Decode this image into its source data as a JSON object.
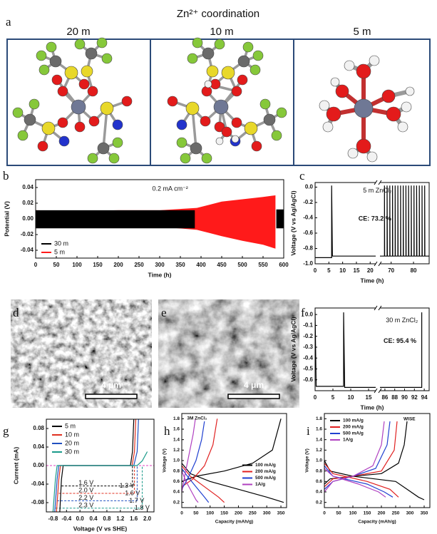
{
  "panel_labels": [
    "a",
    "b",
    "c",
    "d",
    "e",
    "f",
    "g",
    "h",
    "i"
  ],
  "coordination": {
    "title": "Zn²⁺ coordination",
    "columns": [
      "20 m",
      "10 m",
      "5 m"
    ]
  },
  "sem_images": [
    {
      "scale_bar": "4 μm"
    },
    {
      "scale_bar": "4 μm"
    }
  ],
  "chart_data": [
    {
      "type": "area",
      "ylabel": "Potential (V)",
      "xlabel": "Time (h)",
      "xlim": [
        0,
        600
      ],
      "ylim": [
        -0.05,
        0.05
      ],
      "xticks": [
        0,
        50,
        100,
        150,
        200,
        250,
        300,
        350,
        400,
        450,
        500,
        550,
        600
      ],
      "yticks": [
        0.04,
        0.02,
        {
          "value": 0,
          "label": "0.00"
        },
        -0.02,
        -0.04
      ],
      "legend": "lower left",
      "annotations": [
        "0.2 mA cm⁻²"
      ],
      "series": [
        {
          "name": "30 m",
          "color": "#000000",
          "x": [
            0,
            385,
            480,
            582,
            600
          ],
          "values": [
            0.011,
            0.011,
            null,
            0.012,
            0.012
          ],
          "values_low": [
            -0.012,
            -0.012,
            null,
            -0.012,
            -0.012
          ]
        },
        {
          "name": "5 m",
          "color": "#ff1a1a",
          "x": [
            0,
            100,
            200,
            300,
            390,
            420,
            450,
            500,
            550,
            580
          ],
          "values": [
            0.011,
            0.01,
            0.011,
            0.011,
            0.014,
            0.018,
            0.022,
            0.025,
            0.028,
            0.03
          ],
          "values_low": [
            -0.01,
            -0.01,
            -0.01,
            -0.01,
            -0.014,
            -0.018,
            -0.022,
            -0.028,
            -0.033,
            -0.038
          ]
        }
      ]
    },
    {
      "type": "line",
      "ylabel": "Voltage (V vs Ag/AgCl)",
      "xlabel": "Time (h)",
      "xlim": [
        0,
        87
      ],
      "xbreak": [
        22,
        65
      ],
      "ylim": [
        -1,
        0.06
      ],
      "xticks": [
        0,
        5,
        10,
        15,
        20,
        70,
        80
      ],
      "yticks": [
        {
          "value": 0,
          "label": "0.0"
        },
        -0.2,
        -0.4,
        -0.6,
        -0.8,
        {
          "value": -1,
          "label": "-1.0"
        }
      ],
      "annotations": [
        "5 m ZnCl₂",
        "CE: 73.2 %"
      ],
      "series": [
        {
          "color": "#000000",
          "x": [
            0,
            1,
            6,
            6,
            6.3,
            10,
            22,
            40,
            65,
            67,
            67,
            67.1,
            68.2,
            68.2,
            68.3,
            69.4,
            69.4,
            69.5,
            70.6,
            70.6,
            70.7,
            71.8,
            71.8,
            71.9,
            73,
            73,
            73.1,
            74.2,
            74.2,
            74.3,
            75.4,
            75.4,
            75.5,
            76.6,
            76.6,
            76.7,
            77.8,
            77.8,
            77.9,
            79,
            79,
            79.1,
            80.2,
            80.2,
            80.3,
            81.4,
            81.4,
            81.5,
            82.6,
            82.6,
            82.7,
            83.8,
            83.8,
            83.9,
            85,
            85,
            85.1,
            87
          ],
          "values": [
            -0.92,
            -0.92,
            -0.92,
            0.02,
            -0.9,
            -0.9,
            -0.9,
            null,
            -0.9,
            -0.9,
            0.02,
            -0.9,
            -0.9,
            0.02,
            -0.9,
            -0.9,
            0.02,
            -0.9,
            -0.9,
            0.02,
            -0.9,
            -0.9,
            0.02,
            -0.9,
            -0.9,
            0.02,
            -0.9,
            -0.9,
            0.02,
            -0.9,
            -0.9,
            0.02,
            -0.9,
            -0.9,
            0.02,
            -0.9,
            -0.9,
            0.02,
            -0.9,
            -0.9,
            0.02,
            -0.9,
            -0.9,
            0.02,
            -0.9,
            -0.9,
            0.02,
            -0.9,
            -0.9,
            0.02,
            -0.9,
            -0.9,
            0.02,
            -0.9,
            -0.9,
            0.02,
            -0.9,
            -0.9
          ]
        }
      ]
    },
    {
      "type": "line",
      "ylabel": "Voltage (V vs Ag/AgCl)",
      "xlabel": "Time (h)",
      "xlim": [
        0,
        95
      ],
      "xbreak": [
        17,
        85
      ],
      "ylim": [
        -0.7,
        0.06
      ],
      "xticks": [
        0,
        5,
        10,
        15,
        86,
        88,
        90,
        92,
        94
      ],
      "yticks": [
        {
          "value": 0,
          "label": "0.0"
        },
        -0.1,
        -0.2,
        -0.3,
        -0.4,
        -0.5,
        -0.6
      ],
      "annotations": [
        "30 m ZnCl₂",
        "CE: 95.4 %"
      ],
      "series": [
        {
          "color": "#000000",
          "x": [
            0,
            0.3,
            8,
            8,
            8.3,
            17,
            50,
            85,
            93.5,
            93.5
          ],
          "values": [
            0.02,
            -0.66,
            -0.66,
            0.02,
            -0.67,
            -0.67,
            null,
            -0.67,
            -0.67,
            0.02
          ]
        }
      ]
    },
    {
      "type": "line",
      "ylabel": "Current (mA)",
      "xlabel": "Voltage (V vs SHE)",
      "xlim": [
        -1,
        2.2
      ],
      "ylim": [
        -0.1,
        0.1
      ],
      "xticks": [
        -0.8,
        -0.4,
        {
          "value": 0,
          "label": "0.0"
        },
        0.4,
        0.8,
        1.2,
        1.6,
        {
          "value": 2,
          "label": "2.0"
        }
      ],
      "yticks": [
        0.08,
        0.04,
        {
          "value": 0,
          "label": "0.00"
        },
        -0.04,
        -0.08
      ],
      "legend": "upper left",
      "annotations": [
        "1.6 V",
        "2.0 V",
        "2.2 V",
        "2.3 V",
        "1.3 V",
        "1.6 V",
        "1.7 V",
        "1.8 V"
      ],
      "series": [
        {
          "name": "5 m",
          "color": "#000000",
          "x": [
            -0.6,
            -0.55,
            -0.5,
            1.5,
            1.56,
            1.6
          ],
          "values": [
            -0.1,
            -0.03,
            0,
            0,
            0.03,
            0.1
          ]
        },
        {
          "name": "10 m",
          "color": "#e03020",
          "x": [
            -0.7,
            -0.63,
            -0.58,
            1.55,
            1.62,
            1.66
          ],
          "values": [
            -0.1,
            -0.03,
            0,
            0,
            0.03,
            0.1
          ]
        },
        {
          "name": "20 m",
          "color": "#2050c0",
          "x": [
            -0.75,
            -0.68,
            -0.63,
            1.6,
            1.7,
            1.74
          ],
          "values": [
            -0.1,
            -0.03,
            0,
            0,
            0.03,
            0.1
          ]
        },
        {
          "name": "30 m",
          "color": "#1a9a8a",
          "x": [
            -0.8,
            -0.73,
            -0.68,
            1.7,
            1.85,
            2
          ],
          "values": [
            -0.1,
            -0.03,
            0,
            0,
            0.01,
            0.03
          ]
        }
      ]
    },
    {
      "type": "line",
      "ylabel": "Voltage (V)",
      "xlabel": "Capacity (mAh/g)",
      "xlim": [
        0,
        370
      ],
      "ylim": [
        0.1,
        1.9
      ],
      "xticks": [
        0,
        50,
        100,
        150,
        200,
        250,
        300,
        350
      ],
      "yticks": [
        0.2,
        0.4,
        0.6,
        0.8,
        {
          "value": 1,
          "label": "1.0"
        },
        1.2,
        1.4,
        1.6,
        1.8
      ],
      "legend": "center right",
      "annotations": [
        "3M ZnCl₂"
      ],
      "series": [
        {
          "name": "100 mA/g",
          "color": "#000000",
          "x": [
            0,
            50,
            150,
            250,
            320,
            350
          ],
          "values": [
            0.6,
            0.7,
            0.8,
            0.95,
            1.2,
            1.8
          ],
          "x_discharge": [
            0,
            30,
            100,
            200,
            300,
            360
          ],
          "values_discharge": [
            0.95,
            0.75,
            0.6,
            0.45,
            0.3,
            0.2
          ]
        },
        {
          "name": "200 mA/g",
          "color": "#e02020",
          "x": [
            0,
            40,
            80,
            110,
            125
          ],
          "values": [
            0.5,
            0.65,
            0.9,
            1.3,
            1.8
          ],
          "x_discharge": [
            0,
            30,
            80,
            130,
            150
          ],
          "values_discharge": [
            0.9,
            0.7,
            0.5,
            0.3,
            0.2
          ]
        },
        {
          "name": "500 mA/g",
          "color": "#2040d0",
          "x": [
            0,
            25,
            50,
            70,
            80
          ],
          "values": [
            0.45,
            0.7,
            1,
            1.4,
            1.75
          ],
          "x_discharge": [
            0,
            20,
            50,
            80,
            95
          ],
          "values_discharge": [
            0.85,
            0.7,
            0.5,
            0.3,
            0.2
          ]
        },
        {
          "name": "1A/g",
          "color": "#b040c0",
          "x": [
            0,
            10,
            25,
            40,
            48
          ],
          "values": [
            0.4,
            0.7,
            1.1,
            1.5,
            1.8
          ],
          "x_discharge": [
            0,
            15,
            35,
            50,
            58
          ],
          "values_discharge": [
            0.8,
            0.6,
            0.4,
            0.25,
            0.2
          ]
        }
      ]
    },
    {
      "type": "line",
      "ylabel": "Voltage (V)",
      "xlabel": "Capacity (mAh/g)",
      "xlim": [
        0,
        370
      ],
      "ylim": [
        0.1,
        1.9
      ],
      "xticks": [
        0,
        50,
        100,
        150,
        200,
        250,
        300,
        350
      ],
      "yticks": [
        0.2,
        0.4,
        0.6,
        0.8,
        {
          "value": 1,
          "label": "1.0"
        },
        1.2,
        1.4,
        1.6,
        1.8
      ],
      "legend": "upper left",
      "annotations": [
        "WISE"
      ],
      "series": [
        {
          "name": "100 mA/g",
          "color": "#000000",
          "x": [
            0,
            20,
            100,
            200,
            260,
            280,
            290
          ],
          "values": [
            0.55,
            0.65,
            0.7,
            0.75,
            0.95,
            1.3,
            1.75
          ],
          "x_discharge": [
            0,
            20,
            100,
            250,
            290,
            330,
            350
          ],
          "values_discharge": [
            1,
            0.8,
            0.7,
            0.6,
            0.45,
            0.3,
            0.25
          ]
        },
        {
          "name": "200 mA/g",
          "color": "#e02020",
          "x": [
            0,
            30,
            100,
            200,
            245,
            255
          ],
          "values": [
            0.5,
            0.65,
            0.7,
            0.8,
            1.2,
            1.75
          ],
          "x_discharge": [
            0,
            30,
            150,
            230,
            260
          ],
          "values_discharge": [
            0.95,
            0.75,
            0.6,
            0.45,
            0.3
          ]
        },
        {
          "name": "500 mA/g",
          "color": "#2040d0",
          "x": [
            0,
            30,
            100,
            180,
            220,
            230
          ],
          "values": [
            0.45,
            0.6,
            0.7,
            0.85,
            1.3,
            1.75
          ],
          "x_discharge": [
            0,
            30,
            150,
            210,
            240
          ],
          "values_discharge": [
            0.9,
            0.7,
            0.55,
            0.4,
            0.3
          ]
        },
        {
          "name": "1A/g",
          "color": "#b040c0",
          "x": [
            0,
            30,
            100,
            170,
            200,
            210
          ],
          "values": [
            0.4,
            0.6,
            0.7,
            0.9,
            1.3,
            1.75
          ],
          "x_discharge": [
            0,
            30,
            120,
            190,
            215
          ],
          "values_discharge": [
            0.85,
            0.7,
            0.55,
            0.4,
            0.3
          ]
        }
      ]
    }
  ]
}
